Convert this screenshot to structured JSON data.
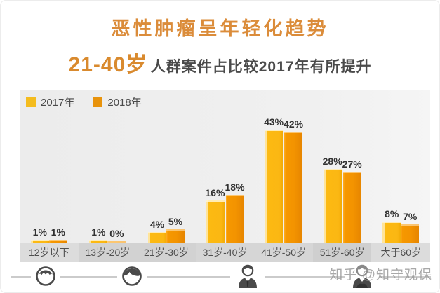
{
  "header": {
    "title": "恶性肿瘤呈年轻化趋势",
    "subtitle_highlight": "21-40岁",
    "subtitle_rest": "人群案件占比较2017年有所提升"
  },
  "legend": [
    {
      "label": "2017年",
      "color": "#F4BC1E"
    },
    {
      "label": "2018年",
      "color": "#E8930C"
    }
  ],
  "chart_data": {
    "type": "bar",
    "title": "恶性肿瘤呈年轻化趋势",
    "categories": [
      "12岁以下",
      "13岁-20岁",
      "21岁-30岁",
      "31岁-40岁",
      "41岁-50岁",
      "51岁-60岁",
      "大于60岁"
    ],
    "series": [
      {
        "name": "2017年",
        "color": "#FBB713",
        "values": [
          1,
          1,
          4,
          16,
          43,
          28,
          8
        ]
      },
      {
        "name": "2018年",
        "color": "#F39300",
        "values": [
          1,
          0,
          5,
          18,
          42,
          27,
          7
        ]
      }
    ],
    "value_suffix": "%",
    "xlabel": "",
    "ylabel": "",
    "ylim": [
      0,
      45
    ],
    "grid": false,
    "legend_position": "top-left",
    "value_labels": true
  },
  "footer": {
    "icons": [
      "baby-icon",
      "child-icon",
      "adult-icon",
      "elder-icon"
    ]
  },
  "watermark": "知乎 @知守观保",
  "colors": {
    "title": "#DB8C3A",
    "subtitle_highlight": "#D98A2E",
    "subtitle_text": "#4A4A4A",
    "bar_2017": "#FBB713",
    "bar_2018": "#F39300",
    "plot_bg": "#EFEFEF",
    "band_bg": "#D6D6D6",
    "watermark_gray": "#9A9A9A"
  }
}
